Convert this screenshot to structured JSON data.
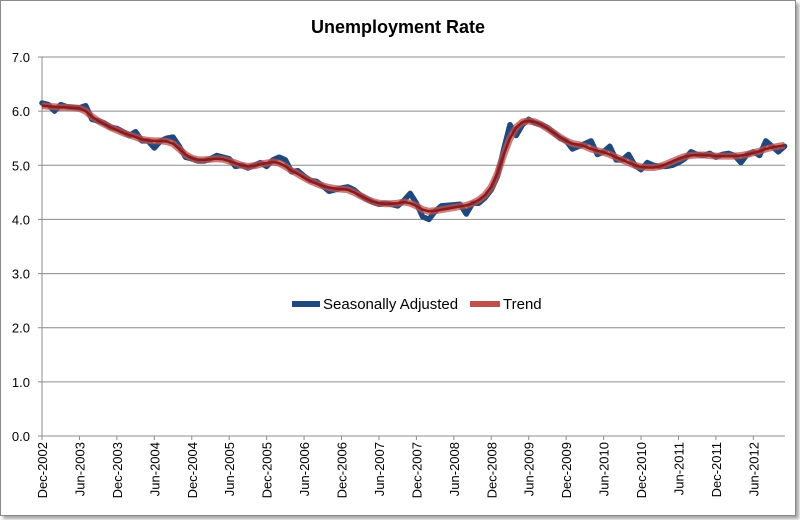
{
  "chart_data": {
    "type": "line",
    "title": "Unemployment Rate",
    "xlabel": "",
    "ylabel": "",
    "ylim": [
      0,
      7
    ],
    "yticks": [
      "0.0",
      "1.0",
      "2.0",
      "3.0",
      "4.0",
      "5.0",
      "6.0",
      "7.0"
    ],
    "xticks": [
      "Dec-2002",
      "Jun-2003",
      "Dec-2003",
      "Jun-2004",
      "Dec-2004",
      "Jun-2005",
      "Dec-2005",
      "Jun-2006",
      "Dec-2006",
      "Jun-2007",
      "Dec-2007",
      "Jun-2008",
      "Dec-2008",
      "Jun-2009",
      "Dec-2009",
      "Jun-2010",
      "Dec-2010",
      "Jun-2011",
      "Dec-2011",
      "Jun-2012"
    ],
    "x_start": "Dec-2002",
    "x_frequency": "monthly",
    "grid": "horizontal",
    "legend_placement": "center",
    "series": [
      {
        "name": "Seasonally Adjusted",
        "color": "#1f497d",
        "values": [
          6.15,
          6.12,
          6.0,
          6.12,
          6.08,
          6.07,
          6.06,
          6.1,
          5.85,
          5.82,
          5.78,
          5.7,
          5.68,
          5.62,
          5.55,
          5.62,
          5.45,
          5.45,
          5.32,
          5.45,
          5.5,
          5.52,
          5.35,
          5.15,
          5.12,
          5.08,
          5.08,
          5.12,
          5.18,
          5.15,
          5.12,
          4.98,
          5.0,
          4.95,
          5.0,
          5.05,
          4.98,
          5.1,
          5.15,
          5.1,
          4.88,
          4.9,
          4.8,
          4.72,
          4.7,
          4.62,
          4.52,
          4.55,
          4.58,
          4.6,
          4.55,
          4.45,
          4.38,
          4.32,
          4.28,
          4.3,
          4.28,
          4.25,
          4.35,
          4.48,
          4.3,
          4.05,
          4.0,
          4.15,
          4.25,
          4.26,
          4.27,
          4.28,
          4.1,
          4.3,
          4.3,
          4.4,
          4.55,
          4.8,
          5.3,
          5.75,
          5.55,
          5.75,
          5.85,
          5.78,
          5.75,
          5.7,
          5.6,
          5.5,
          5.45,
          5.3,
          5.35,
          5.4,
          5.45,
          5.2,
          5.25,
          5.35,
          5.1,
          5.1,
          5.2,
          5.0,
          4.92,
          5.05,
          5.0,
          4.98,
          4.98,
          5.0,
          5.05,
          5.12,
          5.25,
          5.2,
          5.18,
          5.22,
          5.15,
          5.2,
          5.22,
          5.18,
          5.05,
          5.2,
          5.25,
          5.18,
          5.45,
          5.35,
          5.25,
          5.35
        ]
      },
      {
        "name": "Trend",
        "color": "#c0504d",
        "values": [
          6.1,
          6.09,
          6.08,
          6.07,
          6.07,
          6.06,
          6.05,
          6.0,
          5.9,
          5.82,
          5.76,
          5.7,
          5.65,
          5.6,
          5.56,
          5.52,
          5.48,
          5.46,
          5.45,
          5.45,
          5.44,
          5.4,
          5.3,
          5.2,
          5.13,
          5.1,
          5.1,
          5.11,
          5.12,
          5.11,
          5.08,
          5.04,
          5.0,
          4.98,
          4.99,
          5.02,
          5.04,
          5.06,
          5.04,
          4.98,
          4.9,
          4.84,
          4.77,
          4.71,
          4.66,
          4.62,
          4.59,
          4.57,
          4.56,
          4.55,
          4.5,
          4.44,
          4.38,
          4.33,
          4.3,
          4.29,
          4.29,
          4.3,
          4.32,
          4.3,
          4.25,
          4.18,
          4.15,
          4.16,
          4.18,
          4.2,
          4.22,
          4.24,
          4.26,
          4.3,
          4.36,
          4.45,
          4.6,
          4.85,
          5.2,
          5.5,
          5.7,
          5.8,
          5.82,
          5.8,
          5.75,
          5.68,
          5.6,
          5.52,
          5.45,
          5.4,
          5.38,
          5.35,
          5.3,
          5.27,
          5.24,
          5.2,
          5.15,
          5.1,
          5.05,
          5.0,
          4.97,
          4.96,
          4.96,
          4.98,
          5.02,
          5.07,
          5.12,
          5.16,
          5.18,
          5.19,
          5.19,
          5.18,
          5.17,
          5.17,
          5.17,
          5.17,
          5.18,
          5.2,
          5.23,
          5.26,
          5.3,
          5.33,
          5.35,
          5.37
        ]
      }
    ]
  }
}
